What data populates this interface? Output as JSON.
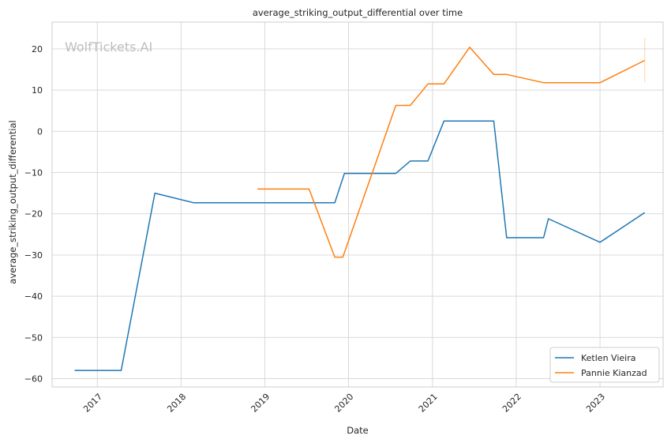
{
  "chart_data": {
    "type": "line",
    "title": "average_striking_output_differential over time",
    "xlabel": "Date",
    "ylabel": "average_striking_output_differential",
    "watermark": "WolfTickets.AI",
    "xlim": [
      "2016-06-18",
      "2023-10-03"
    ],
    "ylim": [
      -62,
      26.5
    ],
    "x_ticks": [
      {
        "date": "2017-01-01",
        "label": "2017"
      },
      {
        "date": "2018-01-01",
        "label": "2018"
      },
      {
        "date": "2019-01-01",
        "label": "2019"
      },
      {
        "date": "2020-01-01",
        "label": "2020"
      },
      {
        "date": "2021-01-01",
        "label": "2021"
      },
      {
        "date": "2022-01-01",
        "label": "2022"
      },
      {
        "date": "2023-01-01",
        "label": "2023"
      }
    ],
    "y_ticks": [
      {
        "value": -60,
        "label": "−60"
      },
      {
        "value": -50,
        "label": "−50"
      },
      {
        "value": -40,
        "label": "−40"
      },
      {
        "value": -30,
        "label": "−30"
      },
      {
        "value": -20,
        "label": "−20"
      },
      {
        "value": -10,
        "label": "−10"
      },
      {
        "value": 0,
        "label": "0"
      },
      {
        "value": 10,
        "label": "10"
      },
      {
        "value": 20,
        "label": "20"
      }
    ],
    "grid": true,
    "legend_position": "lower-right",
    "series": [
      {
        "name": "Ketlen Vieira",
        "color": "#1f77b4",
        "points": [
          {
            "x": "2016-09-24",
            "y": -58.0
          },
          {
            "x": "2017-04-15",
            "y": -58.0
          },
          {
            "x": "2017-09-09",
            "y": -15.0
          },
          {
            "x": "2018-02-24",
            "y": -17.3
          },
          {
            "x": "2019-11-02",
            "y": -17.3
          },
          {
            "x": "2019-12-14",
            "y": -10.2
          },
          {
            "x": "2020-07-25",
            "y": -10.2
          },
          {
            "x": "2020-09-26",
            "y": -7.2
          },
          {
            "x": "2020-12-12",
            "y": -7.2
          },
          {
            "x": "2021-02-20",
            "y": 2.5
          },
          {
            "x": "2021-09-25",
            "y": 2.5
          },
          {
            "x": "2021-11-20",
            "y": -25.8
          },
          {
            "x": "2022-04-30",
            "y": -25.8
          },
          {
            "x": "2022-05-21",
            "y": -21.2
          },
          {
            "x": "2023-01-01",
            "y": -26.9
          },
          {
            "x": "2023-07-15",
            "y": -19.7
          }
        ]
      },
      {
        "name": "Pannie Kianzad",
        "color": "#ff7f0e",
        "points": [
          {
            "x": "2018-11-30",
            "y": -14.0
          },
          {
            "x": "2019-07-13",
            "y": -14.0
          },
          {
            "x": "2019-11-02",
            "y": -30.5
          },
          {
            "x": "2019-12-07",
            "y": -30.5
          },
          {
            "x": "2020-07-25",
            "y": 6.3
          },
          {
            "x": "2020-09-26",
            "y": 6.3
          },
          {
            "x": "2020-12-12",
            "y": 11.5
          },
          {
            "x": "2021-02-20",
            "y": 11.5
          },
          {
            "x": "2021-06-12",
            "y": 20.4
          },
          {
            "x": "2021-09-25",
            "y": 13.8
          },
          {
            "x": "2021-11-20",
            "y": 13.8
          },
          {
            "x": "2022-04-30",
            "y": 11.8
          },
          {
            "x": "2023-01-01",
            "y": 11.8
          },
          {
            "x": "2023-07-15",
            "y": 17.2
          }
        ],
        "error_bar": {
          "x": "2023-07-15",
          "low": 11.8,
          "high": 22.6
        }
      }
    ]
  }
}
